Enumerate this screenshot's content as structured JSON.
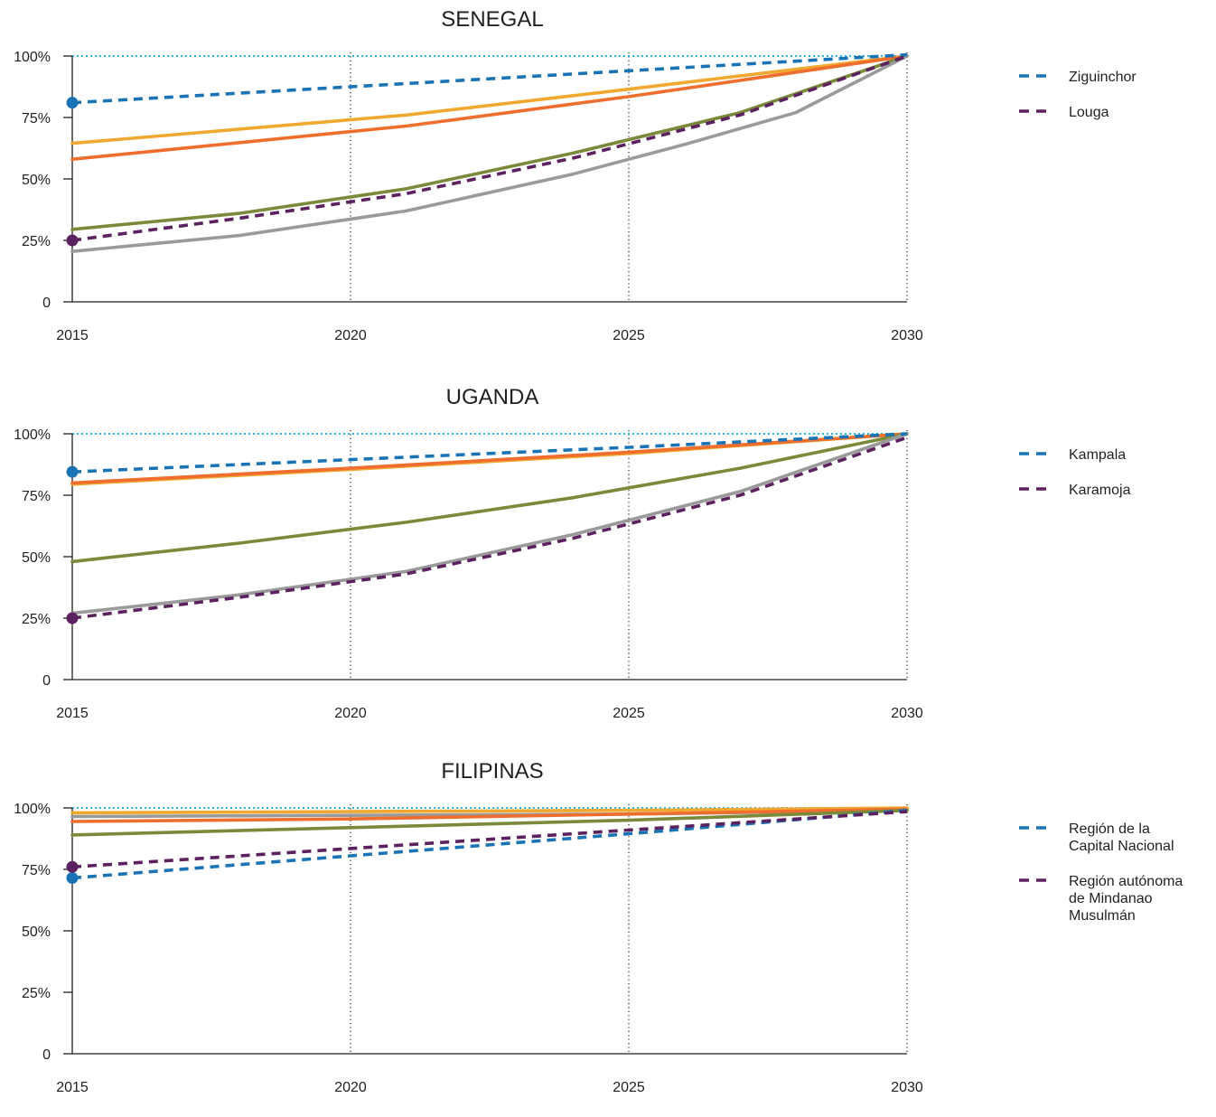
{
  "chart_data": [
    {
      "type": "line",
      "title": "SENEGAL",
      "xlabel": "",
      "ylabel": "",
      "x_ticks": [
        "2015",
        "2020",
        "2025",
        "2030"
      ],
      "y_ticks": [
        "0",
        "25%",
        "50%",
        "75%",
        "100%"
      ],
      "xlim": [
        2015,
        2030
      ],
      "ylim": [
        0,
        100
      ],
      "target": 100,
      "grid": "vertical dotted at 2020, 2025, 2030",
      "legend_position": "right",
      "series": [
        {
          "color": "#f0a830",
          "dashed": false,
          "x": [
            2015,
            2021,
            2025,
            2030
          ],
          "y": [
            64.5,
            76,
            86.5,
            100
          ]
        },
        {
          "color": "#ef6d2d",
          "dashed": false,
          "x": [
            2015,
            2021,
            2025,
            2030
          ],
          "y": [
            58,
            71.5,
            83.5,
            100
          ]
        },
        {
          "color": "#7a8a3a",
          "dashed": false,
          "x": [
            2015,
            2018,
            2021,
            2024,
            2027,
            2030
          ],
          "y": [
            29.5,
            36,
            46,
            60.5,
            77,
            100
          ]
        },
        {
          "color": "#9a9a9a",
          "dashed": false,
          "x": [
            2015,
            2018,
            2021,
            2024,
            2026,
            2028,
            2030
          ],
          "y": [
            20.5,
            27,
            37,
            52,
            64,
            77,
            100
          ]
        },
        {
          "name": "Ziguinchor",
          "color": "#1a73b5",
          "dashed": true,
          "marker": true,
          "x": [
            2015,
            2020,
            2025,
            2030
          ],
          "y": [
            81,
            87.5,
            94,
            100.5
          ]
        },
        {
          "name": "Louga",
          "color": "#5c2260",
          "dashed": true,
          "marker": true,
          "x": [
            2015,
            2018,
            2021,
            2024,
            2027,
            2030
          ],
          "y": [
            25,
            34,
            44,
            58.5,
            76,
            100
          ]
        }
      ]
    },
    {
      "type": "line",
      "title": "UGANDA",
      "xlabel": "",
      "ylabel": "",
      "x_ticks": [
        "2015",
        "2020",
        "2025",
        "2030"
      ],
      "y_ticks": [
        "0",
        "25%",
        "50%",
        "75%",
        "100%"
      ],
      "xlim": [
        2015,
        2030
      ],
      "ylim": [
        0,
        100
      ],
      "target": 100,
      "grid": "vertical dotted at 2020, 2025, 2030",
      "legend_position": "right",
      "series": [
        {
          "color": "#f0a830",
          "dashed": false,
          "x": [
            2015,
            2020,
            2025,
            2030
          ],
          "y": [
            79.5,
            85.5,
            92,
            100
          ]
        },
        {
          "color": "#ef6d2d",
          "dashed": false,
          "x": [
            2015,
            2020,
            2025,
            2030
          ],
          "y": [
            80,
            86,
            92.5,
            100
          ]
        },
        {
          "color": "#7a8a3a",
          "dashed": false,
          "x": [
            2015,
            2018,
            2021,
            2024,
            2027,
            2030
          ],
          "y": [
            48,
            55.5,
            64,
            74,
            86,
            100
          ]
        },
        {
          "color": "#9a9a9a",
          "dashed": false,
          "x": [
            2015,
            2018,
            2021,
            2024,
            2027,
            2030
          ],
          "y": [
            27,
            34.5,
            44,
            59,
            76.5,
            100
          ]
        },
        {
          "name": "Kampala",
          "color": "#1a73b5",
          "dashed": true,
          "marker": true,
          "x": [
            2015,
            2020,
            2025,
            2030
          ],
          "y": [
            84.5,
            89.5,
            94.5,
            100
          ]
        },
        {
          "name": "Karamoja",
          "color": "#5c2260",
          "dashed": true,
          "marker": true,
          "x": [
            2015,
            2018,
            2021,
            2024,
            2027,
            2030
          ],
          "y": [
            25,
            33.5,
            43,
            57.5,
            75,
            98.5
          ]
        }
      ]
    },
    {
      "type": "line",
      "title": "FILIPINAS",
      "xlabel": "",
      "ylabel": "",
      "x_ticks": [
        "2015",
        "2020",
        "2025",
        "2030"
      ],
      "y_ticks": [
        "0",
        "25%",
        "50%",
        "75%",
        "100%"
      ],
      "xlim": [
        2015,
        2030
      ],
      "ylim": [
        0,
        100
      ],
      "target": 100,
      "grid": "vertical dotted at 2020, 2025, 2030",
      "legend_position": "right",
      "series": [
        {
          "color": "#f0a830",
          "dashed": false,
          "x": [
            2015,
            2020,
            2025,
            2030
          ],
          "y": [
            98,
            98.5,
            99,
            100
          ]
        },
        {
          "color": "#9a9a9a",
          "dashed": false,
          "x": [
            2015,
            2020,
            2025,
            2030
          ],
          "y": [
            96.5,
            97,
            97.5,
            99
          ]
        },
        {
          "color": "#ef6d2d",
          "dashed": false,
          "x": [
            2015,
            2020,
            2025,
            2030
          ],
          "y": [
            94.5,
            95.5,
            97.5,
            99.5
          ]
        },
        {
          "color": "#7a8a3a",
          "dashed": false,
          "x": [
            2015,
            2020,
            2025,
            2030
          ],
          "y": [
            89,
            92,
            95,
            99
          ]
        },
        {
          "name": "Región de la Capital Nacional",
          "legend_lines": [
            "Región de la",
            "Capital Nacional"
          ],
          "color": "#1a73b5",
          "dashed": true,
          "marker": true,
          "x": [
            2015,
            2020,
            2025,
            2030
          ],
          "y": [
            71.5,
            80.5,
            89.5,
            99
          ]
        },
        {
          "name": "Región autónoma de Mindanao Musulmán",
          "legend_lines": [
            "Región autónoma",
            "de Mindanao",
            "Musulmán"
          ],
          "color": "#5c2260",
          "dashed": true,
          "marker": true,
          "x": [
            2015,
            2020,
            2025,
            2030
          ],
          "y": [
            76,
            83.5,
            91,
            98.5
          ]
        }
      ]
    }
  ],
  "style": {
    "axis_color": "#231f20",
    "target_line_color": "#27b5e0",
    "grid_color": "#231f20"
  }
}
